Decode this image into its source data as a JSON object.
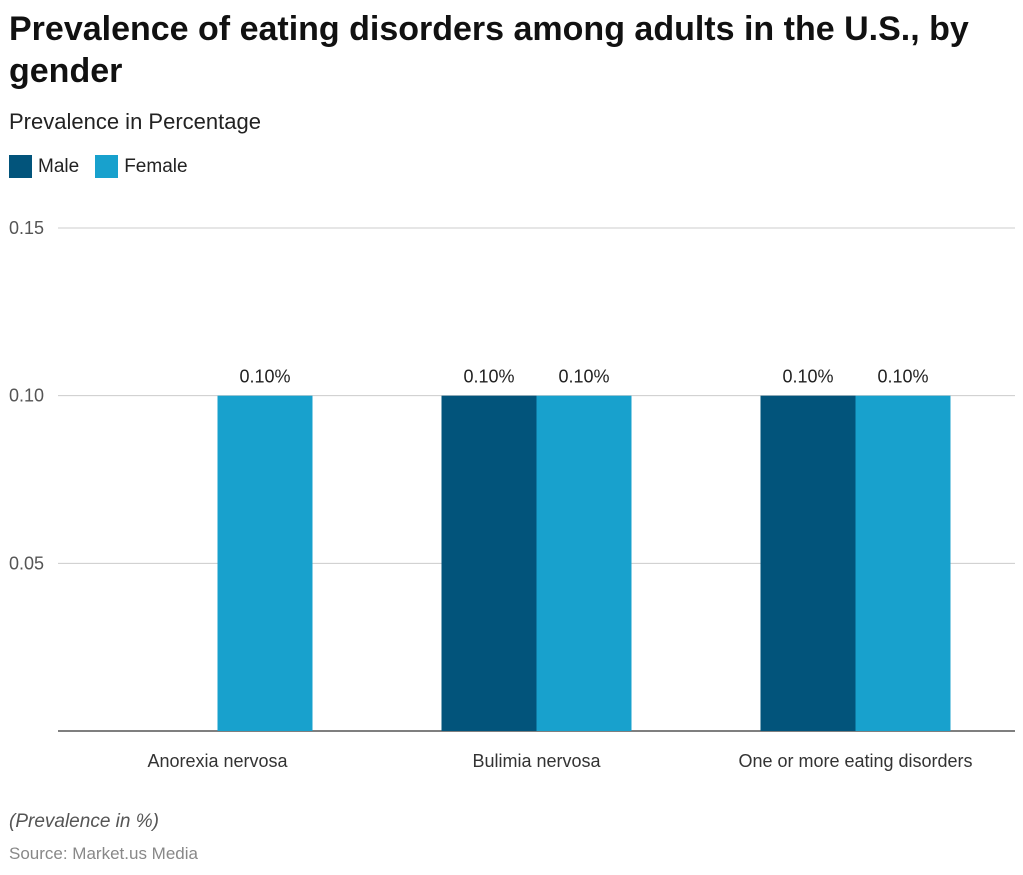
{
  "chart_data": {
    "type": "bar",
    "title": "Prevalence of eating disorders among adults in the U.S., by gender",
    "subtitle": "Prevalence in Percentage",
    "categories": [
      "Anorexia nervosa",
      "Bulimia nervosa",
      "One or more eating disorders"
    ],
    "series": [
      {
        "name": "Male",
        "color": "#02547b",
        "values": [
          null,
          0.1,
          0.1
        ],
        "labels": [
          "",
          "0.10%",
          "0.10%"
        ]
      },
      {
        "name": "Female",
        "color": "#18a1cd",
        "values": [
          0.1,
          0.1,
          0.1
        ],
        "labels": [
          "0.10%",
          "0.10%",
          "0.10%"
        ]
      }
    ],
    "yticks": [
      0.05,
      0.1,
      0.15
    ],
    "ytick_labels": [
      "0.05",
      "0.10",
      "0.15"
    ],
    "ylim": [
      0,
      0.15
    ],
    "grid": true,
    "legend_position": "top-left"
  },
  "footnote": "(Prevalence in %)",
  "source": "Source: Market.us Media"
}
